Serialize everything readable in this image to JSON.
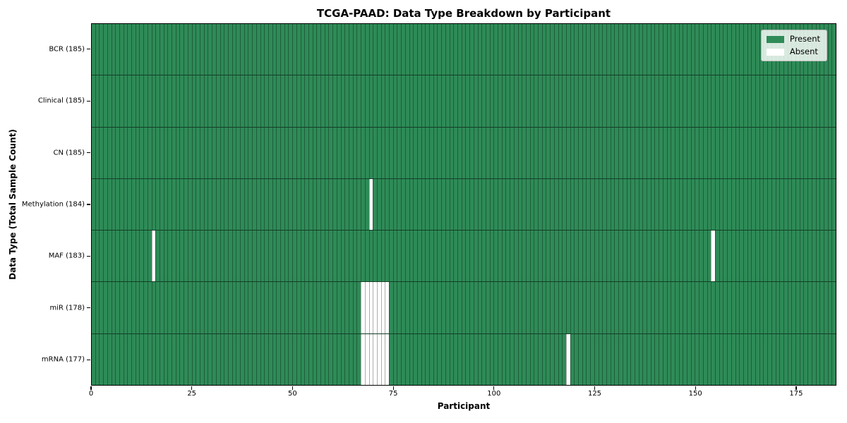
{
  "chart_data": {
    "type": "heatmap",
    "title": "TCGA-PAAD: Data Type Breakdown by Participant",
    "xlabel": "Participant",
    "ylabel": "Data Type (Total Sample Count)",
    "x_ticks": [
      0,
      25,
      50,
      75,
      100,
      125,
      150,
      175
    ],
    "x_range": [
      0,
      185
    ],
    "n_participants": 185,
    "legend": {
      "position": "upper-right",
      "items": [
        {
          "name": "present",
          "label": "Present",
          "color": "#2e8b57"
        },
        {
          "name": "absent",
          "label": "Absent",
          "color": "#ffffff"
        }
      ]
    },
    "rows": [
      {
        "name": "BCR",
        "label": "BCR (185)",
        "total_samples": 185,
        "absent_participants": []
      },
      {
        "name": "Clinical",
        "label": "Clinical (185)",
        "total_samples": 185,
        "absent_participants": []
      },
      {
        "name": "CN",
        "label": "CN (185)",
        "total_samples": 185,
        "absent_participants": []
      },
      {
        "name": "Methylation",
        "label": "Methylation (184)",
        "total_samples": 184,
        "absent_participants": [
          69
        ]
      },
      {
        "name": "MAF",
        "label": "MAF (183)",
        "total_samples": 183,
        "absent_participants": [
          15,
          154
        ]
      },
      {
        "name": "miR",
        "label": "miR (178)",
        "total_samples": 178,
        "absent_participants": [
          67,
          68,
          69,
          70,
          71,
          72,
          73
        ]
      },
      {
        "name": "mRNA",
        "label": "mRNA (177)",
        "total_samples": 177,
        "absent_participants": [
          67,
          68,
          69,
          70,
          71,
          72,
          73,
          118
        ]
      }
    ],
    "colors": {
      "present": "#2e8b57",
      "absent": "#ffffff"
    }
  }
}
